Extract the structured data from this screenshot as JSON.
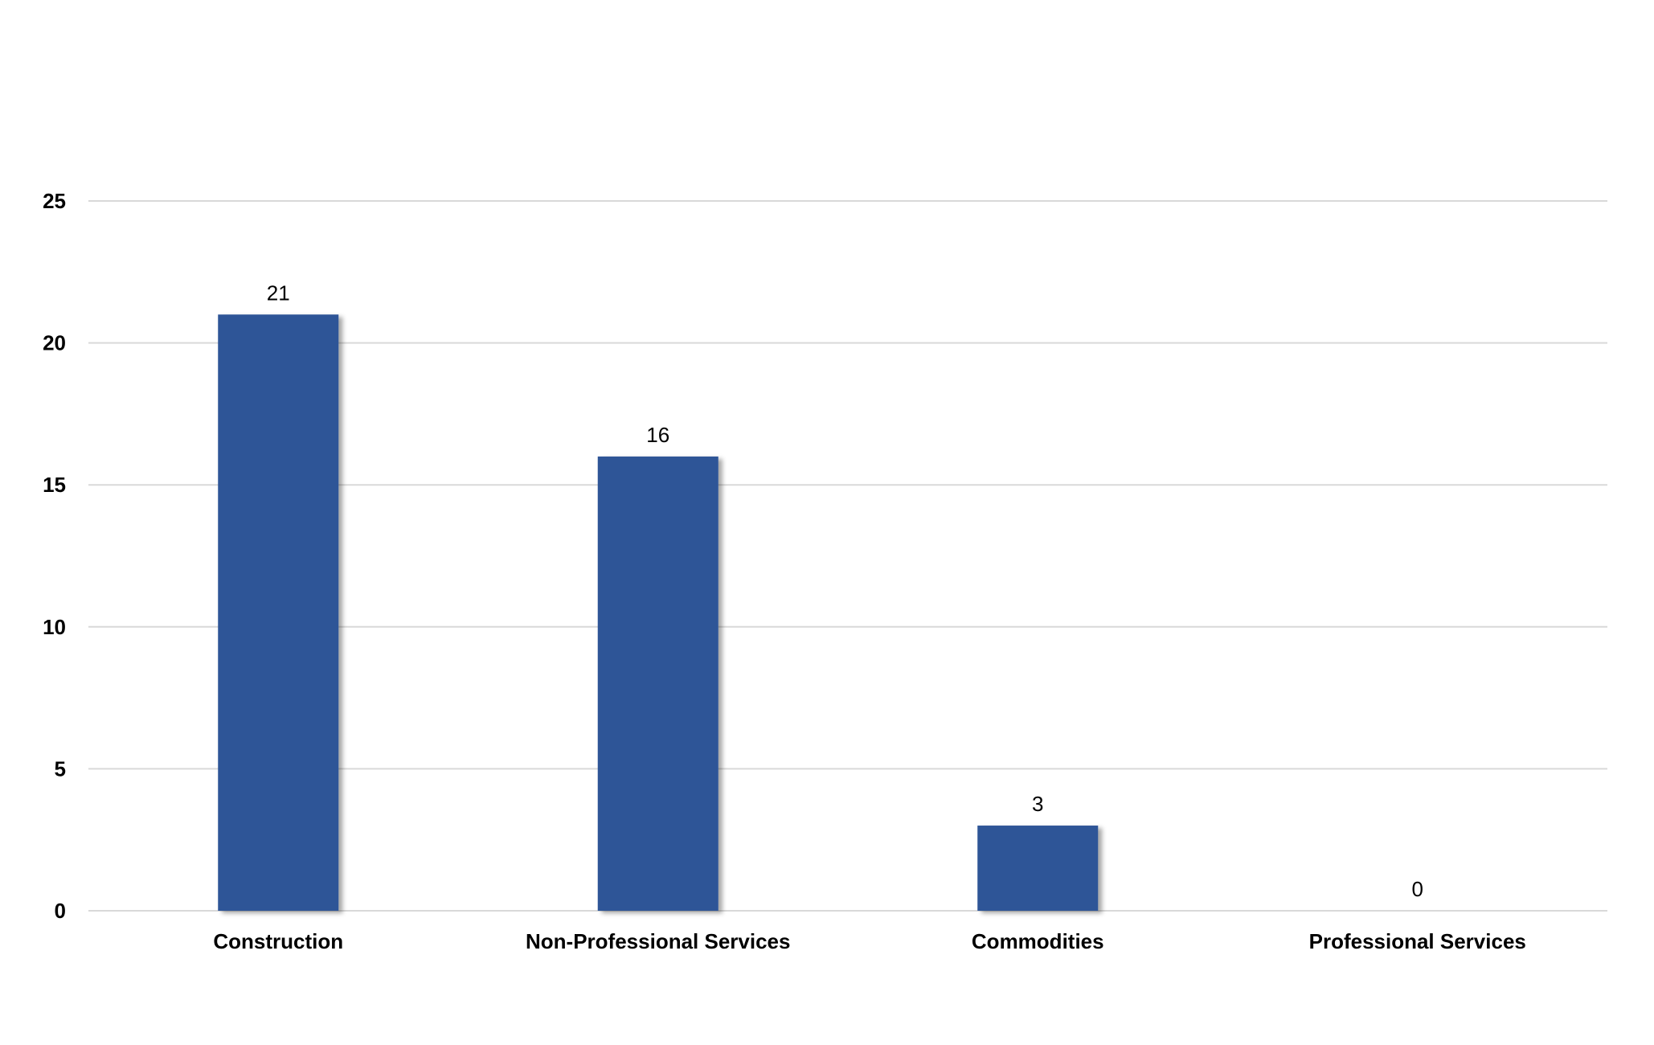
{
  "chart_data": {
    "type": "bar",
    "title": "",
    "xlabel": "",
    "ylabel": "",
    "categories": [
      "Construction",
      "Non-Professional Services",
      "Commodities",
      "Professional Services"
    ],
    "values": [
      21,
      16,
      3,
      0
    ],
    "data_labels": [
      "21",
      "16",
      "3",
      "0"
    ],
    "ylim": [
      0,
      25
    ],
    "yticks": [
      0,
      5,
      10,
      15,
      20,
      25
    ],
    "ytick_labels": [
      "0",
      "5",
      "10",
      "15",
      "20",
      "25"
    ],
    "grid": true,
    "legend": "none",
    "colors": {
      "bar": "#2f5597",
      "grid": "#d9d9d9",
      "text": "#000000"
    }
  }
}
